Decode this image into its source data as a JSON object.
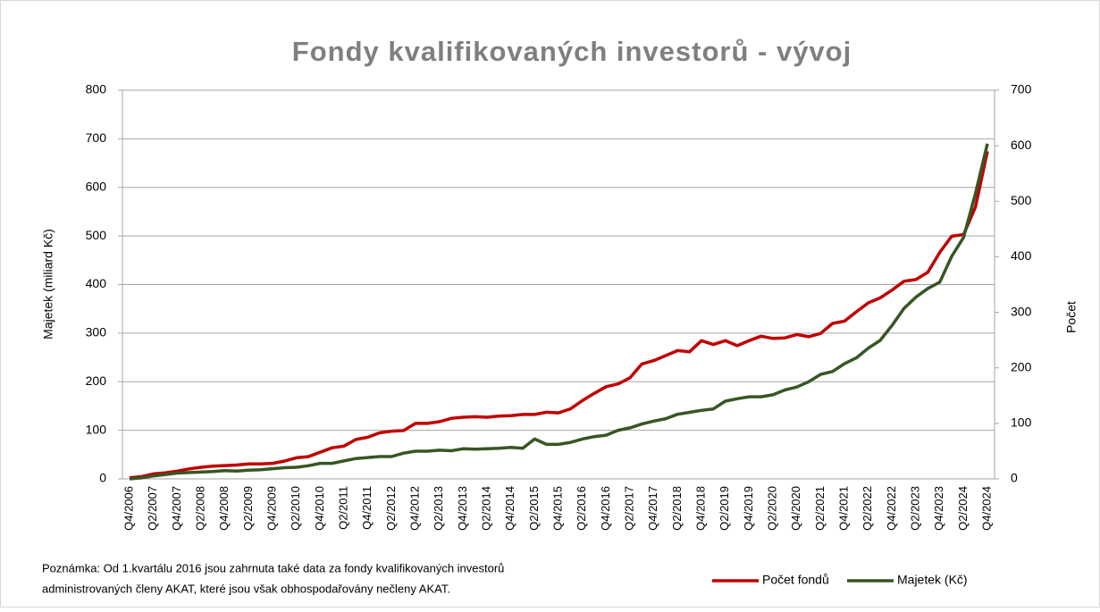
{
  "chart_data": {
    "type": "line",
    "title": "Fondy kvalifikovaných investorů - vývoj",
    "ylabel": "Majetek (miliard Kč)",
    "y2label": "Počet",
    "note": [
      "Poznámka: Od 1.kvartálu 2016 jsou zahrnuta také data za fondy kvalifikovaných investorů",
      "administrovaných členy AKAT, které jsou však obhospodařovány nečleny AKAT."
    ],
    "categories": [
      "Q4/2006",
      null,
      "Q2/2007",
      null,
      "Q4/2007",
      null,
      "Q2/2008",
      null,
      "Q4/2008",
      null,
      "Q2/2009",
      null,
      "Q4/2009",
      null,
      "Q2/2010",
      null,
      "Q4/2010",
      null,
      "Q2/2011",
      null,
      "Q4/2011",
      null,
      "Q2/2012",
      null,
      "Q4/2012",
      null,
      "Q2/2013",
      null,
      "Q4/2013",
      null,
      "Q2/2014",
      null,
      "Q4/2014",
      null,
      "Q2/2015",
      null,
      "Q4/2015",
      null,
      "Q2/2016",
      null,
      "Q4/2016",
      null,
      "Q2/2017",
      null,
      "Q4/2017",
      null,
      "Q2/2018",
      null,
      "Q4/2018",
      null,
      "Q2/2019",
      null,
      "Q4/2019",
      null,
      "Q2/2020",
      null,
      "Q4/2020",
      null,
      "Q2/2021",
      null,
      "Q4/2021",
      null,
      "Q2/2022",
      null,
      "Q4/2022",
      null,
      "Q2/2023",
      null,
      "Q4/2023",
      null,
      "Q2/2024",
      null,
      "Q4/2024"
    ],
    "series": [
      {
        "name": "Počet fondů",
        "color": "#c00000",
        "axis": "y2",
        "values": [
          2,
          4,
          9,
          11,
          14,
          18,
          21,
          23,
          24,
          25,
          27,
          27,
          28,
          32,
          38,
          40,
          48,
          56,
          59,
          71,
          75,
          83,
          86,
          87,
          100,
          100,
          103,
          109,
          111,
          112,
          111,
          113,
          114,
          116,
          116,
          120,
          119,
          126,
          141,
          154,
          166,
          171,
          182,
          207,
          213,
          222,
          231,
          229,
          249,
          242,
          249,
          240,
          249,
          257,
          253,
          254,
          260,
          256,
          262,
          280,
          284,
          301,
          317,
          326,
          340,
          356,
          359,
          372,
          408,
          437,
          440,
          490,
          590
        ]
      },
      {
        "name": "Majetek (Kč)",
        "color": "#375623",
        "values": [
          0,
          2,
          6,
          9,
          12,
          13,
          14,
          15,
          17,
          16,
          18,
          19,
          21,
          23,
          24,
          27,
          32,
          32,
          37,
          42,
          44,
          46,
          46,
          53,
          57,
          57,
          59,
          58,
          62,
          61,
          62,
          63,
          65,
          63,
          82,
          71,
          71,
          75,
          82,
          87,
          90,
          100,
          105,
          113,
          119,
          124,
          133,
          137,
          141,
          144,
          160,
          165,
          169,
          169,
          173,
          183,
          189,
          200,
          215,
          221,
          237,
          249,
          269,
          285,
          316,
          351,
          374,
          392,
          405,
          458,
          497,
          588,
          690
        ]
      }
    ],
    "ylim": [
      0,
      800
    ],
    "yticks": [
      0,
      100,
      200,
      300,
      400,
      500,
      600,
      700,
      800
    ],
    "y2lim": [
      0,
      700
    ],
    "y2ticks": [
      0,
      100,
      200,
      300,
      400,
      500,
      600,
      700
    ],
    "grid": true
  }
}
